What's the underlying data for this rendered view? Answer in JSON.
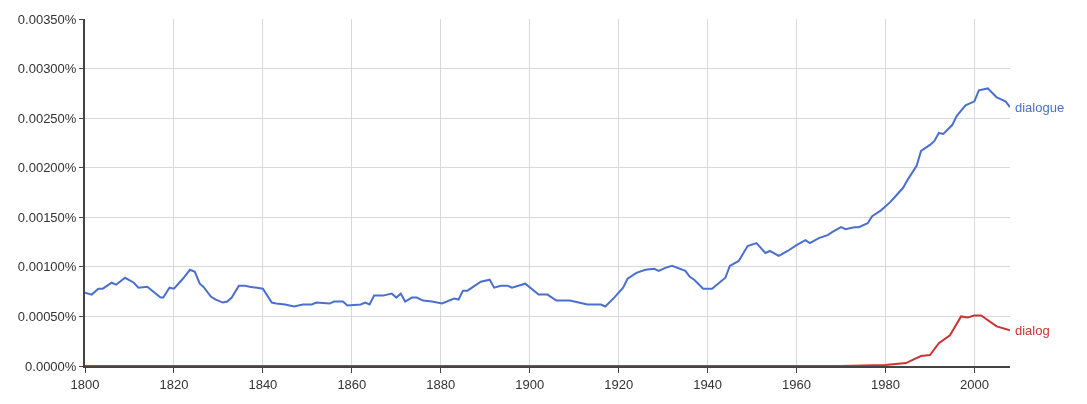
{
  "chart_data": {
    "type": "line",
    "xlim": [
      1800,
      2008
    ],
    "xticks": [
      1800,
      1820,
      1840,
      1860,
      1880,
      1900,
      1920,
      1940,
      1960,
      1980,
      2000
    ],
    "ylim": [
      0,
      0.0035
    ],
    "yticks": [
      {
        "value": 0,
        "label": "0.0000%"
      },
      {
        "value": 0.0005,
        "label": "0.00050%"
      },
      {
        "value": 0.001,
        "label": "0.00100%"
      },
      {
        "value": 0.0015,
        "label": "0.00150%"
      },
      {
        "value": 0.002,
        "label": "0.00200%"
      },
      {
        "value": 0.0025,
        "label": "0.00250%"
      },
      {
        "value": 0.003,
        "label": "0.00300%"
      },
      {
        "value": 0.0035,
        "label": "0.00350%"
      }
    ],
    "grid": true,
    "legend": false,
    "marker": "none",
    "line_style": "solid",
    "series": [
      {
        "name": "dialogue",
        "color": "#4a6fcf",
        "x": [
          1800,
          1801.5,
          1803,
          1804,
          1806,
          1807,
          1809,
          1811,
          1812,
          1814,
          1817,
          1817.6,
          1819,
          1820,
          1822,
          1823.6,
          1824.7,
          1825.8,
          1826.6,
          1828.3,
          1829.4,
          1831,
          1832,
          1833,
          1834.6,
          1836,
          1837,
          1840,
          1842,
          1843,
          1845,
          1847,
          1849,
          1851,
          1852,
          1855,
          1856,
          1858,
          1859,
          1862,
          1863,
          1864,
          1865,
          1867,
          1869,
          1870,
          1871,
          1872,
          1873.5,
          1874.6,
          1876,
          1878,
          1880.3,
          1883,
          1884,
          1885,
          1886,
          1889,
          1891,
          1892,
          1893.5,
          1895,
          1896,
          1899,
          1902,
          1904,
          1906,
          1909,
          1911,
          1913,
          1916,
          1917,
          1919,
          1921,
          1922,
          1924,
          1926,
          1928,
          1929,
          1930.5,
          1932,
          1935,
          1936,
          1937,
          1939,
          1941,
          1944,
          1945,
          1947,
          1949,
          1951,
          1953,
          1954,
          1956,
          1958,
          1960,
          1962,
          1963,
          1965,
          1967,
          1968,
          1970,
          1971,
          1973,
          1974,
          1976,
          1977,
          1979,
          1981,
          1982,
          1984,
          1985,
          1987,
          1988,
          1990,
          1991,
          1992,
          1993,
          1995,
          1996,
          1998,
          2000,
          2001,
          2003,
          2005,
          2007,
          2008
        ],
        "values": [
          0.00074,
          0.00072,
          0.00078,
          0.00078,
          0.00084,
          0.00082,
          0.00089,
          0.00084,
          0.00079,
          0.0008,
          0.00069,
          0.00069,
          0.00079,
          0.00078,
          0.00088,
          0.00097,
          0.00095,
          0.00083,
          0.0008,
          0.0007,
          0.00067,
          0.00064,
          0.00065,
          0.00069,
          0.00081,
          0.00081,
          0.0008,
          0.00078,
          0.00064,
          0.00063,
          0.00062,
          0.0006,
          0.00062,
          0.00062,
          0.00064,
          0.00063,
          0.00065,
          0.00065,
          0.00061,
          0.00062,
          0.00064,
          0.00062,
          0.00071,
          0.00071,
          0.00073,
          0.00069,
          0.00073,
          0.00065,
          0.00069,
          0.00069,
          0.00066,
          0.00065,
          0.00063,
          0.00068,
          0.00067,
          0.00076,
          0.00076,
          0.00085,
          0.00087,
          0.00079,
          0.00081,
          0.00081,
          0.00079,
          0.00083,
          0.00072,
          0.00072,
          0.00066,
          0.00066,
          0.00064,
          0.00062,
          0.00062,
          0.0006,
          0.00069,
          0.00079,
          0.00088,
          0.00094,
          0.00097,
          0.00098,
          0.00096,
          0.00099,
          0.00101,
          0.00096,
          0.0009,
          0.00087,
          0.00078,
          0.00078,
          0.00089,
          0.00101,
          0.00106,
          0.00121,
          0.00124,
          0.00114,
          0.00116,
          0.00111,
          0.00116,
          0.00122,
          0.00127,
          0.00124,
          0.00129,
          0.00132,
          0.00135,
          0.0014,
          0.00138,
          0.0014,
          0.0014,
          0.00144,
          0.00151,
          0.00157,
          0.00165,
          0.0017,
          0.0018,
          0.00188,
          0.00202,
          0.00217,
          0.00223,
          0.00227,
          0.00235,
          0.00234,
          0.00243,
          0.00252,
          0.00263,
          0.00267,
          0.00278,
          0.0028,
          0.00271,
          0.00267,
          0.00261
        ]
      },
      {
        "name": "dialog",
        "color": "#cc3333",
        "x": [
          1800,
          1900,
          1970,
          1980,
          1984.6,
          1986,
          1988,
          1990,
          1992,
          1994.5,
          1997,
          1998.5,
          2000,
          2001.5,
          2005,
          2008
        ],
        "values": [
          0,
          0,
          0,
          1e-05,
          3e-05,
          6e-05,
          0.0001,
          0.00011,
          0.00023,
          0.00031,
          0.0005,
          0.00049,
          0.00051,
          0.00051,
          0.0004,
          0.00036
        ]
      }
    ]
  }
}
